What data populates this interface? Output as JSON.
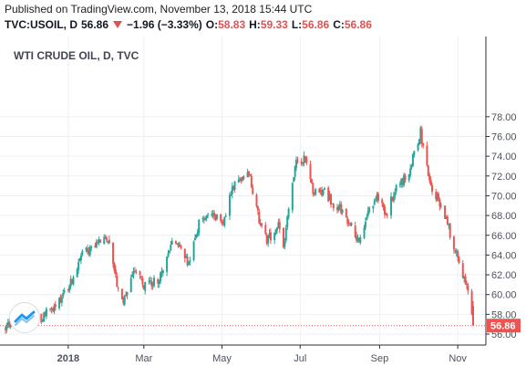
{
  "header": {
    "published": "Published on TradingView.com, November 13, 2018 15:44 UTC",
    "symbol": "TVC:USOIL, D",
    "last": "56.86",
    "change": "−1.96 (−3.33%)",
    "o_label": "O:",
    "o": "58.83",
    "h_label": "H:",
    "h": "59.33",
    "l_label": "L:",
    "l": "56.86",
    "c_label": "C:",
    "c": "56.86"
  },
  "legend_title": "WTI CRUDE OIL, D, TVC",
  "last_price_label": "56.86",
  "colors": {
    "up": "#26a69a",
    "down": "#ef5350",
    "axis_text": "#4c525e",
    "grid": "#eef0f3"
  },
  "chart_data": {
    "type": "candlestick",
    "title": "WTI CRUDE OIL, D, TVC",
    "x_ticks": [
      "2018",
      "Mar",
      "May",
      "Jul",
      "Sep",
      "Nov"
    ],
    "y_ticks": [
      "56.00",
      "58.00",
      "60.00",
      "62.00",
      "64.00",
      "66.00",
      "68.00",
      "70.00",
      "72.00",
      "74.00",
      "76.00",
      "78.00"
    ],
    "ylim": [
      55.5,
      78.2
    ],
    "last_price": 56.86,
    "grid": true,
    "close_path": [
      [
        "2017-11-13",
        56.8
      ],
      [
        "2017-11-27",
        57.9
      ],
      [
        "2017-12-11",
        57.5
      ],
      [
        "2017-12-26",
        59.6
      ],
      [
        "2018-01-04",
        61.5
      ],
      [
        "2018-01-12",
        64.0
      ],
      [
        "2018-01-25",
        65.5
      ],
      [
        "2018-02-01",
        65.8
      ],
      [
        "2018-02-08",
        61.2
      ],
      [
        "2018-02-13",
        59.0
      ],
      [
        "2018-02-22",
        62.5
      ],
      [
        "2018-03-01",
        61.0
      ],
      [
        "2018-03-12",
        61.4
      ],
      [
        "2018-03-22",
        65.0
      ],
      [
        "2018-03-29",
        64.9
      ],
      [
        "2018-04-05",
        62.9
      ],
      [
        "2018-04-13",
        67.4
      ],
      [
        "2018-04-25",
        68.0
      ],
      [
        "2018-05-01",
        67.2
      ],
      [
        "2018-05-10",
        71.0
      ],
      [
        "2018-05-22",
        72.3
      ],
      [
        "2018-05-31",
        67.0
      ],
      [
        "2018-06-05",
        65.5
      ],
      [
        "2018-06-14",
        66.9
      ],
      [
        "2018-06-18",
        64.8
      ],
      [
        "2018-06-28",
        73.5
      ],
      [
        "2018-07-05",
        73.8
      ],
      [
        "2018-07-11",
        70.4
      ],
      [
        "2018-07-20",
        70.5
      ],
      [
        "2018-07-27",
        69.0
      ],
      [
        "2018-08-03",
        68.6
      ],
      [
        "2018-08-16",
        65.0
      ],
      [
        "2018-08-24",
        68.7
      ],
      [
        "2018-08-30",
        70.2
      ],
      [
        "2018-09-06",
        67.7
      ],
      [
        "2018-09-12",
        70.4
      ],
      [
        "2018-09-24",
        72.4
      ],
      [
        "2018-10-03",
        76.4
      ],
      [
        "2018-10-11",
        70.9
      ],
      [
        "2018-10-19",
        69.1
      ],
      [
        "2018-10-25",
        66.7
      ],
      [
        "2018-11-02",
        63.1
      ],
      [
        "2018-11-08",
        60.7
      ],
      [
        "2018-11-13",
        56.86
      ]
    ]
  }
}
